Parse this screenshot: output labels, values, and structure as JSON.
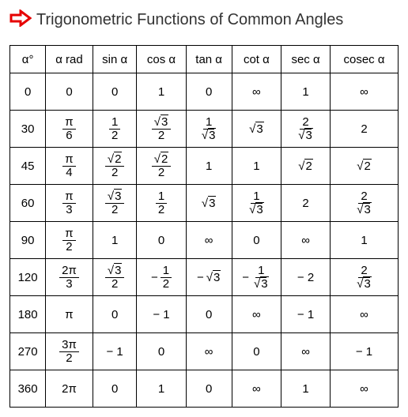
{
  "title": "Trigonometric Functions of Common Angles",
  "arrow_color": "#e60000",
  "headers": [
    "α°",
    "α rad",
    "sin α",
    "cos α",
    "tan α",
    "cot α",
    "sec α",
    "cosec α"
  ],
  "rows": [
    {
      "deg": "0",
      "rad": {
        "t": "n",
        "v": "0"
      },
      "sin": {
        "t": "n",
        "v": "0"
      },
      "cos": {
        "t": "n",
        "v": "1"
      },
      "tan": {
        "t": "n",
        "v": "0"
      },
      "cot": {
        "t": "inf"
      },
      "sec": {
        "t": "n",
        "v": "1"
      },
      "cosec": {
        "t": "inf"
      }
    },
    {
      "deg": "30",
      "rad": {
        "t": "f",
        "num": "π",
        "den": "6"
      },
      "sin": {
        "t": "f",
        "num": "1",
        "den": "2"
      },
      "cos": {
        "t": "f",
        "num": {
          "sqrt": "3"
        },
        "den": "2"
      },
      "tan": {
        "t": "f",
        "num": "1",
        "den": {
          "sqrt": "3"
        }
      },
      "cot": {
        "t": "s",
        "v": "3"
      },
      "sec": {
        "t": "f",
        "num": "2",
        "den": {
          "sqrt": "3"
        }
      },
      "cosec": {
        "t": "n",
        "v": "2"
      }
    },
    {
      "deg": "45",
      "rad": {
        "t": "f",
        "num": "π",
        "den": "4"
      },
      "sin": {
        "t": "f",
        "num": {
          "sqrt": "2"
        },
        "den": "2"
      },
      "cos": {
        "t": "f",
        "num": {
          "sqrt": "2"
        },
        "den": "2"
      },
      "tan": {
        "t": "n",
        "v": "1"
      },
      "cot": {
        "t": "n",
        "v": "1"
      },
      "sec": {
        "t": "s",
        "v": "2"
      },
      "cosec": {
        "t": "s",
        "v": "2"
      }
    },
    {
      "deg": "60",
      "rad": {
        "t": "f",
        "num": "π",
        "den": "3"
      },
      "sin": {
        "t": "f",
        "num": {
          "sqrt": "3"
        },
        "den": "2"
      },
      "cos": {
        "t": "f",
        "num": "1",
        "den": "2"
      },
      "tan": {
        "t": "s",
        "v": "3"
      },
      "cot": {
        "t": "f",
        "num": "1",
        "den": {
          "sqrt": "3"
        }
      },
      "sec": {
        "t": "n",
        "v": "2"
      },
      "cosec": {
        "t": "f",
        "num": "2",
        "den": {
          "sqrt": "3"
        }
      }
    },
    {
      "deg": "90",
      "rad": {
        "t": "f",
        "num": "π",
        "den": "2"
      },
      "sin": {
        "t": "n",
        "v": "1"
      },
      "cos": {
        "t": "n",
        "v": "0"
      },
      "tan": {
        "t": "inf"
      },
      "cot": {
        "t": "n",
        "v": "0"
      },
      "sec": {
        "t": "inf"
      },
      "cosec": {
        "t": "n",
        "v": "1"
      }
    },
    {
      "deg": "120",
      "rad": {
        "t": "f",
        "num": "2π",
        "den": "3"
      },
      "sin": {
        "t": "f",
        "num": {
          "sqrt": "3"
        },
        "den": "2"
      },
      "cos": {
        "t": "f",
        "neg": true,
        "num": "1",
        "den": "2"
      },
      "tan": {
        "t": "s",
        "neg": true,
        "v": "3"
      },
      "cot": {
        "t": "f",
        "neg": true,
        "num": "1",
        "den": {
          "sqrt": "3"
        }
      },
      "sec": {
        "t": "n",
        "v": "− 2"
      },
      "cosec": {
        "t": "f",
        "num": "2",
        "den": {
          "sqrt": "3"
        }
      }
    },
    {
      "deg": "180",
      "rad": {
        "t": "n",
        "v": "π"
      },
      "sin": {
        "t": "n",
        "v": "0"
      },
      "cos": {
        "t": "n",
        "v": "− 1"
      },
      "tan": {
        "t": "n",
        "v": "0"
      },
      "cot": {
        "t": "inf"
      },
      "sec": {
        "t": "n",
        "v": "− 1"
      },
      "cosec": {
        "t": "inf"
      }
    },
    {
      "deg": "270",
      "rad": {
        "t": "f",
        "num": "3π",
        "den": "2"
      },
      "sin": {
        "t": "n",
        "v": "− 1"
      },
      "cos": {
        "t": "n",
        "v": "0"
      },
      "tan": {
        "t": "inf"
      },
      "cot": {
        "t": "n",
        "v": "0"
      },
      "sec": {
        "t": "inf"
      },
      "cosec": {
        "t": "n",
        "v": "− 1"
      }
    },
    {
      "deg": "360",
      "rad": {
        "t": "n",
        "v": "2π"
      },
      "sin": {
        "t": "n",
        "v": "0"
      },
      "cos": {
        "t": "n",
        "v": "1"
      },
      "tan": {
        "t": "n",
        "v": "0"
      },
      "cot": {
        "t": "inf"
      },
      "sec": {
        "t": "n",
        "v": "1"
      },
      "cosec": {
        "t": "inf"
      }
    }
  ]
}
